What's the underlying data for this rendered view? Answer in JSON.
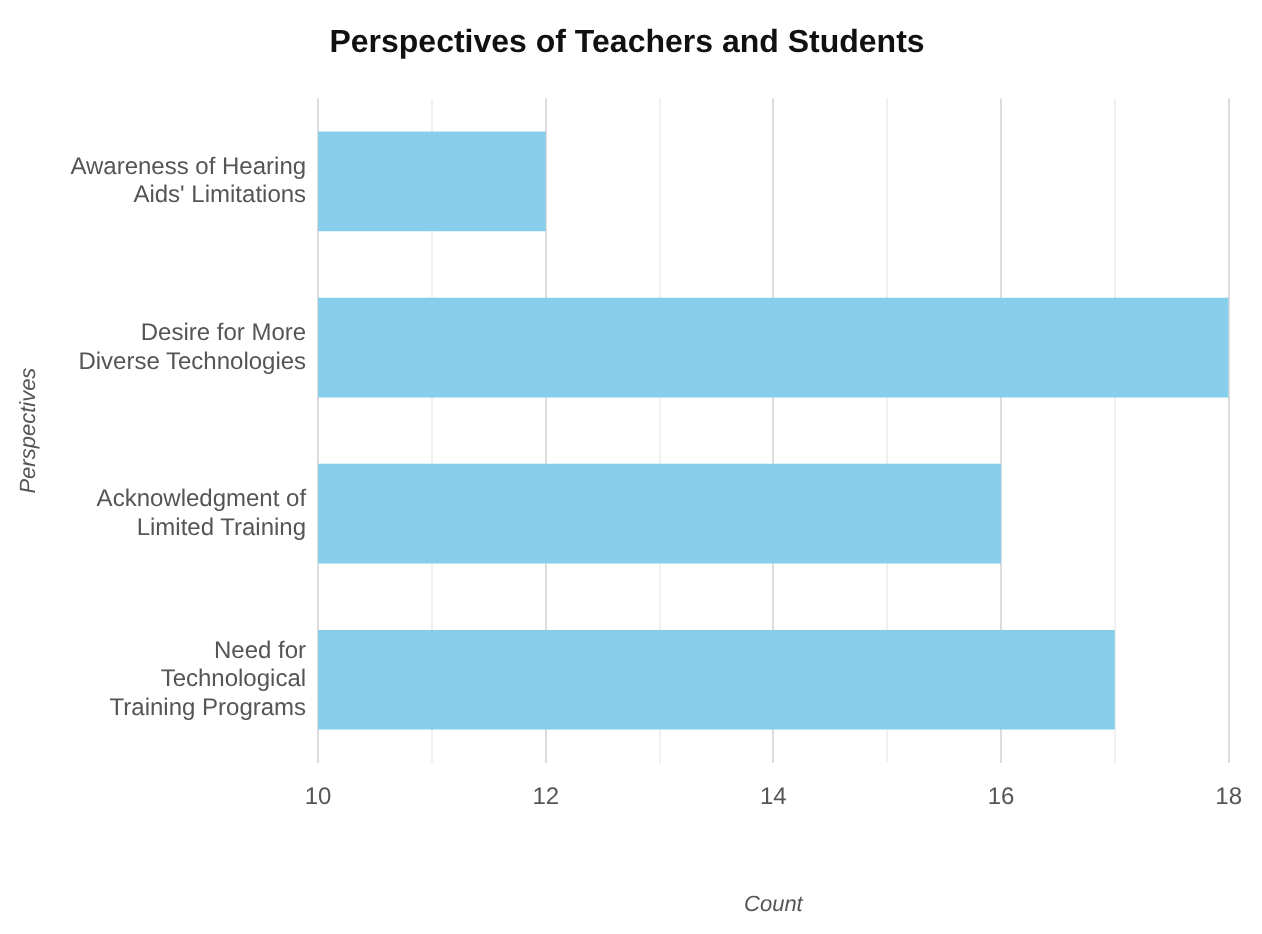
{
  "chart_data": {
    "type": "bar",
    "orientation": "horizontal",
    "title": "Perspectives of Teachers and Students",
    "xlabel": "Count",
    "ylabel": "Perspectives",
    "categories": [
      "Awareness of Hearing Aids' Limitations",
      "Desire for More Diverse Technologies",
      "Acknowledgment of Limited Training",
      "Need for Technological Training Programs"
    ],
    "values": [
      12,
      18,
      16,
      17
    ],
    "color": "#87ceeb",
    "xlim": [
      10,
      18
    ],
    "xticks": [
      10,
      {
        "value": 11,
        "label": null
      },
      12,
      {
        "value": 13,
        "label": null
      },
      14,
      {
        "value": 15,
        "label": null
      },
      16,
      {
        "value": 17,
        "label": null
      },
      18
    ],
    "grid": "x"
  }
}
